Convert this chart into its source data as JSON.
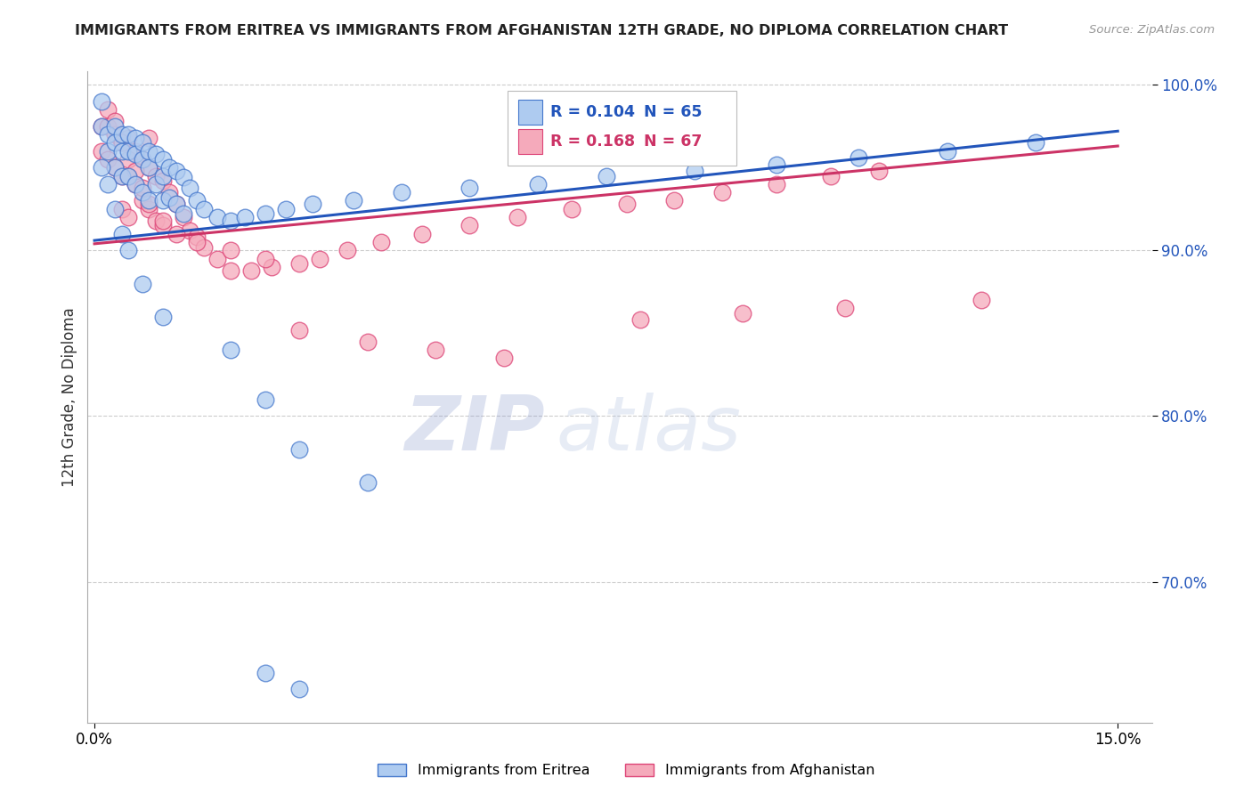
{
  "title": "IMMIGRANTS FROM ERITREA VS IMMIGRANTS FROM AFGHANISTAN 12TH GRADE, NO DIPLOMA CORRELATION CHART",
  "source": "Source: ZipAtlas.com",
  "ylabel": "12th Grade, No Diploma",
  "ylim": [
    0.615,
    1.008
  ],
  "xlim": [
    -0.001,
    0.155
  ],
  "yticks": [
    0.7,
    0.8,
    0.9,
    1.0
  ],
  "ytick_labels": [
    "70.0%",
    "80.0%",
    "90.0%",
    "100.0%"
  ],
  "xtick_left": "0.0%",
  "xtick_right": "15.0%",
  "legend_blue_r": "R = 0.104",
  "legend_blue_n": "N = 65",
  "legend_pink_r": "R = 0.168",
  "legend_pink_n": "N = 67",
  "legend_label_blue": "Immigrants from Eritrea",
  "legend_label_pink": "Immigrants from Afghanistan",
  "blue_fill": "#AECBF0",
  "pink_fill": "#F5AABB",
  "blue_edge": "#4477CC",
  "pink_edge": "#DD4477",
  "blue_line_color": "#2255BB",
  "pink_line_color": "#CC3366",
  "watermark_zip": "ZIP",
  "watermark_atlas": "atlas",
  "blue_line_y0": 0.906,
  "blue_line_y1": 0.972,
  "pink_line_y0": 0.904,
  "pink_line_y1": 0.963,
  "blue_x": [
    0.001,
    0.001,
    0.002,
    0.002,
    0.003,
    0.003,
    0.003,
    0.004,
    0.004,
    0.004,
    0.005,
    0.005,
    0.005,
    0.006,
    0.006,
    0.006,
    0.007,
    0.007,
    0.007,
    0.008,
    0.008,
    0.008,
    0.009,
    0.009,
    0.01,
    0.01,
    0.01,
    0.011,
    0.011,
    0.012,
    0.012,
    0.013,
    0.013,
    0.014,
    0.015,
    0.016,
    0.018,
    0.02,
    0.022,
    0.025,
    0.028,
    0.032,
    0.038,
    0.045,
    0.055,
    0.065,
    0.075,
    0.088,
    0.1,
    0.112,
    0.125,
    0.138,
    0.001,
    0.002,
    0.003,
    0.004,
    0.005,
    0.007,
    0.01,
    0.02,
    0.025,
    0.03,
    0.04,
    0.025,
    0.03
  ],
  "blue_y": [
    0.99,
    0.975,
    0.97,
    0.96,
    0.975,
    0.965,
    0.95,
    0.97,
    0.96,
    0.945,
    0.97,
    0.96,
    0.945,
    0.968,
    0.958,
    0.94,
    0.965,
    0.955,
    0.935,
    0.96,
    0.95,
    0.93,
    0.958,
    0.94,
    0.955,
    0.945,
    0.93,
    0.95,
    0.932,
    0.948,
    0.928,
    0.944,
    0.922,
    0.938,
    0.93,
    0.925,
    0.92,
    0.918,
    0.92,
    0.922,
    0.925,
    0.928,
    0.93,
    0.935,
    0.938,
    0.94,
    0.945,
    0.948,
    0.952,
    0.956,
    0.96,
    0.965,
    0.95,
    0.94,
    0.925,
    0.91,
    0.9,
    0.88,
    0.86,
    0.84,
    0.81,
    0.78,
    0.76,
    0.645,
    0.635
  ],
  "pink_x": [
    0.001,
    0.001,
    0.002,
    0.002,
    0.003,
    0.003,
    0.004,
    0.004,
    0.004,
    0.005,
    0.005,
    0.005,
    0.006,
    0.006,
    0.007,
    0.007,
    0.008,
    0.008,
    0.009,
    0.009,
    0.01,
    0.01,
    0.011,
    0.012,
    0.013,
    0.014,
    0.015,
    0.016,
    0.018,
    0.02,
    0.023,
    0.026,
    0.03,
    0.033,
    0.037,
    0.042,
    0.048,
    0.055,
    0.062,
    0.07,
    0.078,
    0.085,
    0.092,
    0.1,
    0.108,
    0.115,
    0.002,
    0.003,
    0.004,
    0.005,
    0.006,
    0.007,
    0.008,
    0.01,
    0.012,
    0.015,
    0.02,
    0.025,
    0.03,
    0.04,
    0.05,
    0.06,
    0.08,
    0.095,
    0.11,
    0.13,
    0.008
  ],
  "pink_y": [
    0.975,
    0.96,
    0.975,
    0.955,
    0.97,
    0.95,
    0.965,
    0.945,
    0.925,
    0.968,
    0.945,
    0.92,
    0.96,
    0.94,
    0.955,
    0.93,
    0.95,
    0.925,
    0.945,
    0.918,
    0.942,
    0.915,
    0.935,
    0.928,
    0.92,
    0.912,
    0.908,
    0.902,
    0.895,
    0.888,
    0.888,
    0.89,
    0.892,
    0.895,
    0.9,
    0.905,
    0.91,
    0.915,
    0.92,
    0.925,
    0.928,
    0.93,
    0.935,
    0.94,
    0.945,
    0.948,
    0.985,
    0.978,
    0.965,
    0.955,
    0.948,
    0.938,
    0.928,
    0.918,
    0.91,
    0.905,
    0.9,
    0.895,
    0.852,
    0.845,
    0.84,
    0.835,
    0.858,
    0.862,
    0.865,
    0.87,
    0.968
  ]
}
